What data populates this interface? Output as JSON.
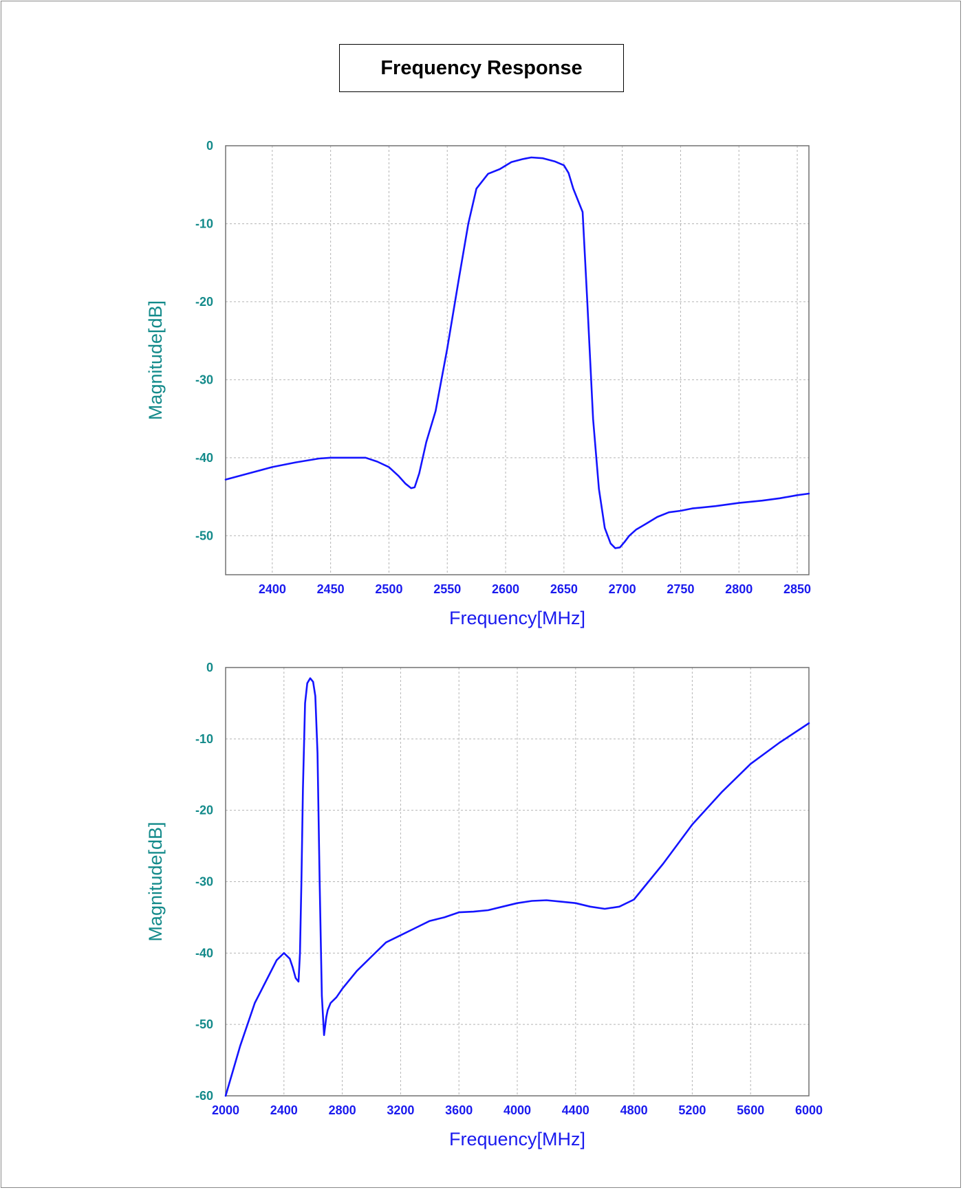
{
  "title": "Frequency Response",
  "colors": {
    "line": "#1414ff",
    "x_text": "#1a1aee",
    "y_text": "#138a8a",
    "grid": "#b4b4b4",
    "frame": "#707070"
  },
  "chart_data": [
    {
      "type": "line",
      "title": "",
      "xlabel": "Frequency[MHz]",
      "ylabel": "Magnitude[dB]",
      "xlim": [
        2360,
        2860
      ],
      "ylim": [
        -55,
        0
      ],
      "grid": true,
      "x_tick_labels": [
        "2400",
        "2450",
        "2500",
        "2550",
        "2600",
        "2650",
        "2700",
        "2750",
        "2800",
        "2850"
      ],
      "y_tick_labels": [
        "0",
        "-10",
        "-20",
        "-30",
        "-40",
        "-50"
      ],
      "series": [
        {
          "x": [
            2360,
            2380,
            2400,
            2420,
            2440,
            2450,
            2465,
            2480,
            2490,
            2500,
            2508,
            2514,
            2519,
            2522,
            2526,
            2532,
            2540,
            2550,
            2560,
            2568,
            2575,
            2585,
            2595,
            2605,
            2615,
            2622,
            2632,
            2642,
            2650,
            2654,
            2658,
            2662,
            2666,
            2670,
            2675,
            2680,
            2685,
            2690,
            2694,
            2698,
            2702,
            2706,
            2712,
            2720,
            2730,
            2740,
            2750,
            2760,
            2780,
            2800,
            2820,
            2835,
            2850,
            2860
          ],
          "y": [
            -42.8,
            -42.0,
            -41.2,
            -40.6,
            -40.1,
            -40.0,
            -40.0,
            -40.0,
            -40.5,
            -41.2,
            -42.3,
            -43.3,
            -43.9,
            -43.8,
            -42.0,
            -38.0,
            -34.0,
            -26.0,
            -17.0,
            -10.0,
            -5.5,
            -3.6,
            -3.0,
            -2.1,
            -1.7,
            -1.5,
            -1.6,
            -2.0,
            -2.5,
            -3.5,
            -5.5,
            -7.0,
            -8.5,
            -20.0,
            -35.0,
            -44.0,
            -49.0,
            -51.0,
            -51.6,
            -51.5,
            -50.8,
            -50.0,
            -49.2,
            -48.5,
            -47.6,
            -47.0,
            -46.8,
            -46.5,
            -46.2,
            -45.8,
            -45.5,
            -45.2,
            -44.8,
            -44.6
          ]
        }
      ]
    },
    {
      "type": "line",
      "title": "",
      "xlabel": "Frequency[MHz]",
      "ylabel": "Magnitude[dB]",
      "xlim": [
        2000,
        6000
      ],
      "ylim": [
        -60,
        0
      ],
      "grid": true,
      "x_tick_labels": [
        "2000",
        "2400",
        "2800",
        "3200",
        "3600",
        "4000",
        "4400",
        "4800",
        "5200",
        "5600",
        "6000"
      ],
      "y_tick_labels": [
        "0",
        "-10",
        "-20",
        "-30",
        "-40",
        "-50",
        "-60"
      ],
      "series": [
        {
          "x": [
            2000,
            2050,
            2100,
            2150,
            2200,
            2250,
            2300,
            2350,
            2400,
            2440,
            2460,
            2480,
            2500,
            2510,
            2520,
            2530,
            2545,
            2560,
            2580,
            2600,
            2615,
            2630,
            2645,
            2660,
            2675,
            2690,
            2700,
            2720,
            2760,
            2800,
            2900,
            3000,
            3100,
            3200,
            3300,
            3400,
            3500,
            3600,
            3700,
            3800,
            3900,
            4000,
            4100,
            4200,
            4300,
            4400,
            4500,
            4600,
            4700,
            4800,
            4900,
            5000,
            5200,
            5400,
            5600,
            5800,
            6000
          ],
          "y": [
            -60.0,
            -56.5,
            -53.0,
            -50.0,
            -47.0,
            -45.0,
            -43.0,
            -41.0,
            -40.0,
            -40.8,
            -42.0,
            -43.5,
            -44.0,
            -40.0,
            -30.0,
            -17.0,
            -5.0,
            -2.2,
            -1.5,
            -2.0,
            -4.0,
            -12.0,
            -30.0,
            -46.0,
            -51.5,
            -49.0,
            -48.0,
            -47.0,
            -46.2,
            -45.0,
            -42.5,
            -40.5,
            -38.5,
            -37.5,
            -36.5,
            -35.5,
            -35.0,
            -34.3,
            -34.2,
            -34.0,
            -33.5,
            -33.0,
            -32.7,
            -32.6,
            -32.8,
            -33.0,
            -33.5,
            -33.8,
            -33.5,
            -32.5,
            -30.0,
            -27.5,
            -22.0,
            -17.5,
            -13.5,
            -10.5,
            -7.8
          ]
        }
      ]
    }
  ]
}
